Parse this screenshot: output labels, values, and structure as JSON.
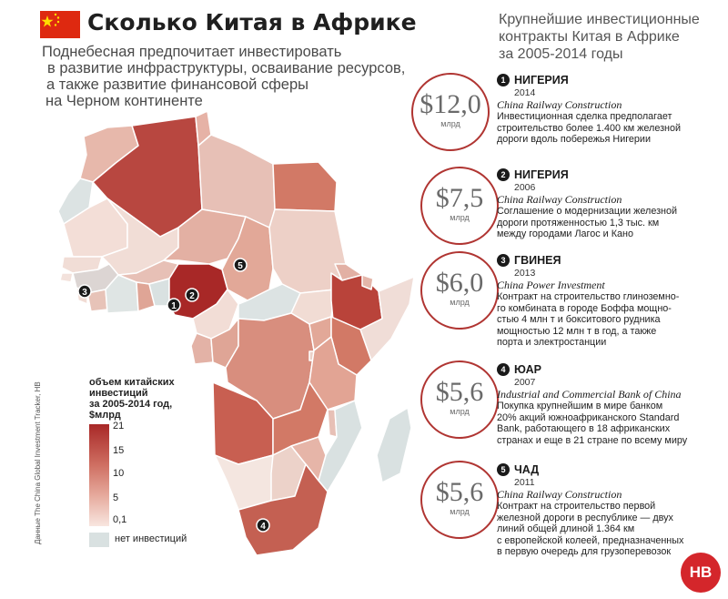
{
  "header": {
    "title": "Сколько Китая в Африке",
    "subtitle": [
      "Поднебесная предпочитает инвестировать",
      "в развитие инфраструктуры, осваивание ресурсов,",
      "а также развитие финансовой сферы",
      "на Черном континенте"
    ]
  },
  "legend": {
    "title": [
      "объем китайских",
      "инвестиций",
      "за 2005-2014 год,",
      "$млрд"
    ],
    "ticks": [
      "21",
      "15",
      "10",
      "5",
      "0,1"
    ],
    "no_data": "нет инвестиций",
    "colors": {
      "max": "#a82827",
      "mid": "#cf6f62",
      "low": "#e6aa9d",
      "min": "#f8e6e0",
      "none": "#d9e1e1"
    }
  },
  "source": "Данные The China Global Investment Tracker, HB",
  "right_header": [
    "Крупнейшие инвестиционные",
    "контракты Китая в Африке",
    "за 2005-2014 годы"
  ],
  "contracts": [
    {
      "n": "1",
      "country": "НИГЕРИЯ",
      "year": "2014",
      "amount": "$12,0",
      "unit": "млрд",
      "company": "China Railway Construction",
      "desc": [
        "Инвестиционная сделка предполагает",
        "строительство более 1.400 км железной",
        "дороги вдоль побережья Нигерии"
      ]
    },
    {
      "n": "2",
      "country": "НИГЕРИЯ",
      "year": "2006",
      "amount": "$7,5",
      "unit": "млрд",
      "company": "China Railway Construction",
      "desc": [
        "Соглашение о модернизации железной",
        "дороги протяженностью 1,3 тыс. км",
        "между городами Лагос и Кано"
      ]
    },
    {
      "n": "3",
      "country": "ГВИНЕЯ",
      "year": "2013",
      "amount": "$6,0",
      "unit": "млрд",
      "company": "China Power Investment",
      "desc": [
        "Контракт на строительство глиноземно-",
        "го комбината в городе Боффа мощно-",
        "стью 4 млн т и бокситового рудника",
        "мощностью 12 млн т в год, а также",
        "порта и электростанции"
      ]
    },
    {
      "n": "4",
      "country": "ЮАР",
      "year": "2007",
      "amount": "$5,6",
      "unit": "млрд",
      "company": "Industrial and Commercial Bank of China",
      "desc": [
        "Покупка крупнейшим в мире банком",
        "20% акций южноафриканского Standard",
        "Bank, работающего в 18 африканских",
        "странах и еще в 21 стране по всему миру"
      ]
    },
    {
      "n": "5",
      "country": "ЧАД",
      "year": "2011",
      "amount": "$5,6",
      "unit": "млрд",
      "company": "China Railway Construction",
      "desc": [
        "Контракт на строительство первой",
        "железной дороги в республике — двух",
        "линий общей длиной 1.364 км",
        "с европейской колеей, предназначенных",
        "в первую очередь для грузоперевозок"
      ]
    }
  ],
  "map_markers": [
    "1",
    "2",
    "3",
    "4",
    "5"
  ],
  "logo": "НВ"
}
